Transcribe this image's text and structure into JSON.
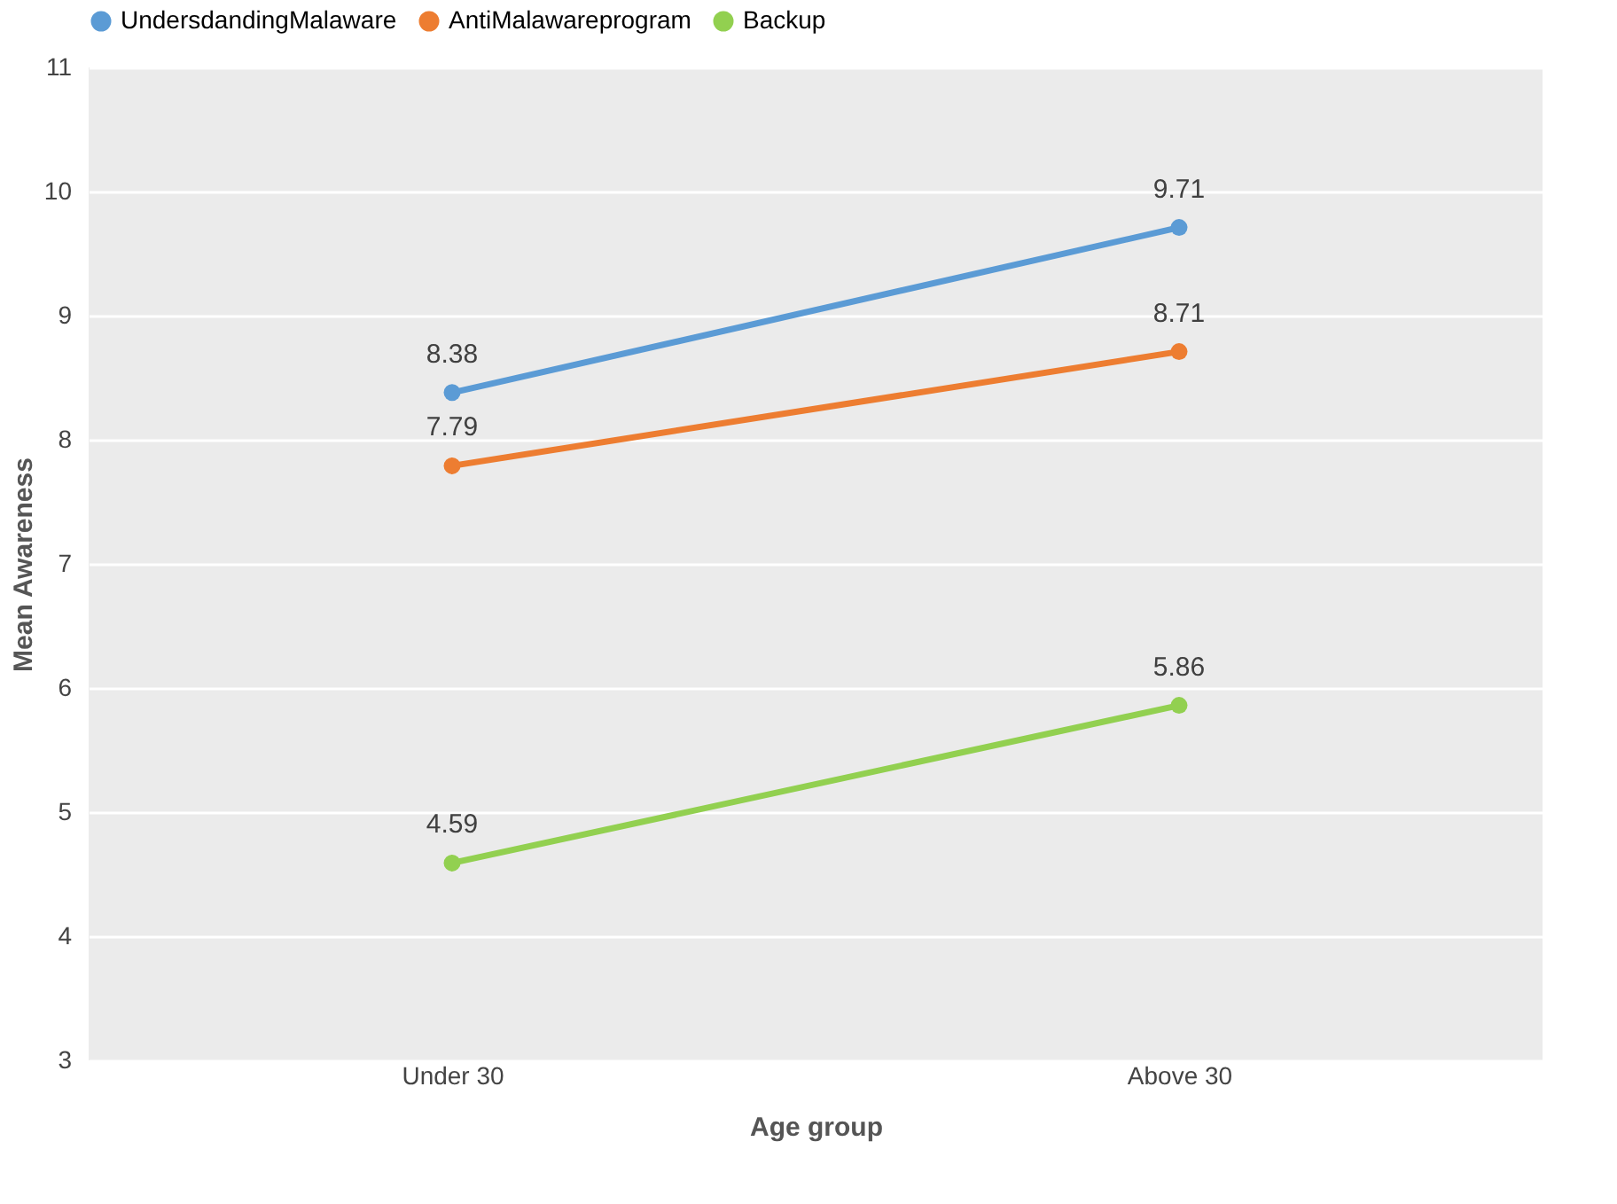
{
  "chart_data": {
    "type": "line",
    "xlabel": "Age group",
    "ylabel": "Mean Awareness",
    "categories": [
      "Under 30",
      "Above 30"
    ],
    "series": [
      {
        "name": "UndersdandingMalaware",
        "color": "#5b9bd5",
        "values": [
          8.38,
          9.71
        ]
      },
      {
        "name": "AntiMalawareprogram",
        "color": "#ed7d31",
        "values": [
          7.79,
          8.71
        ]
      },
      {
        "name": "Backup",
        "color": "#92d050",
        "values": [
          4.59,
          5.86
        ]
      }
    ],
    "ylim": [
      3,
      11
    ],
    "yticks": [
      3,
      4,
      5,
      6,
      7,
      8,
      9,
      10,
      11
    ],
    "grid": "y",
    "legend": "top",
    "marker": "circle",
    "line_style": "solid",
    "data_labels": true
  }
}
